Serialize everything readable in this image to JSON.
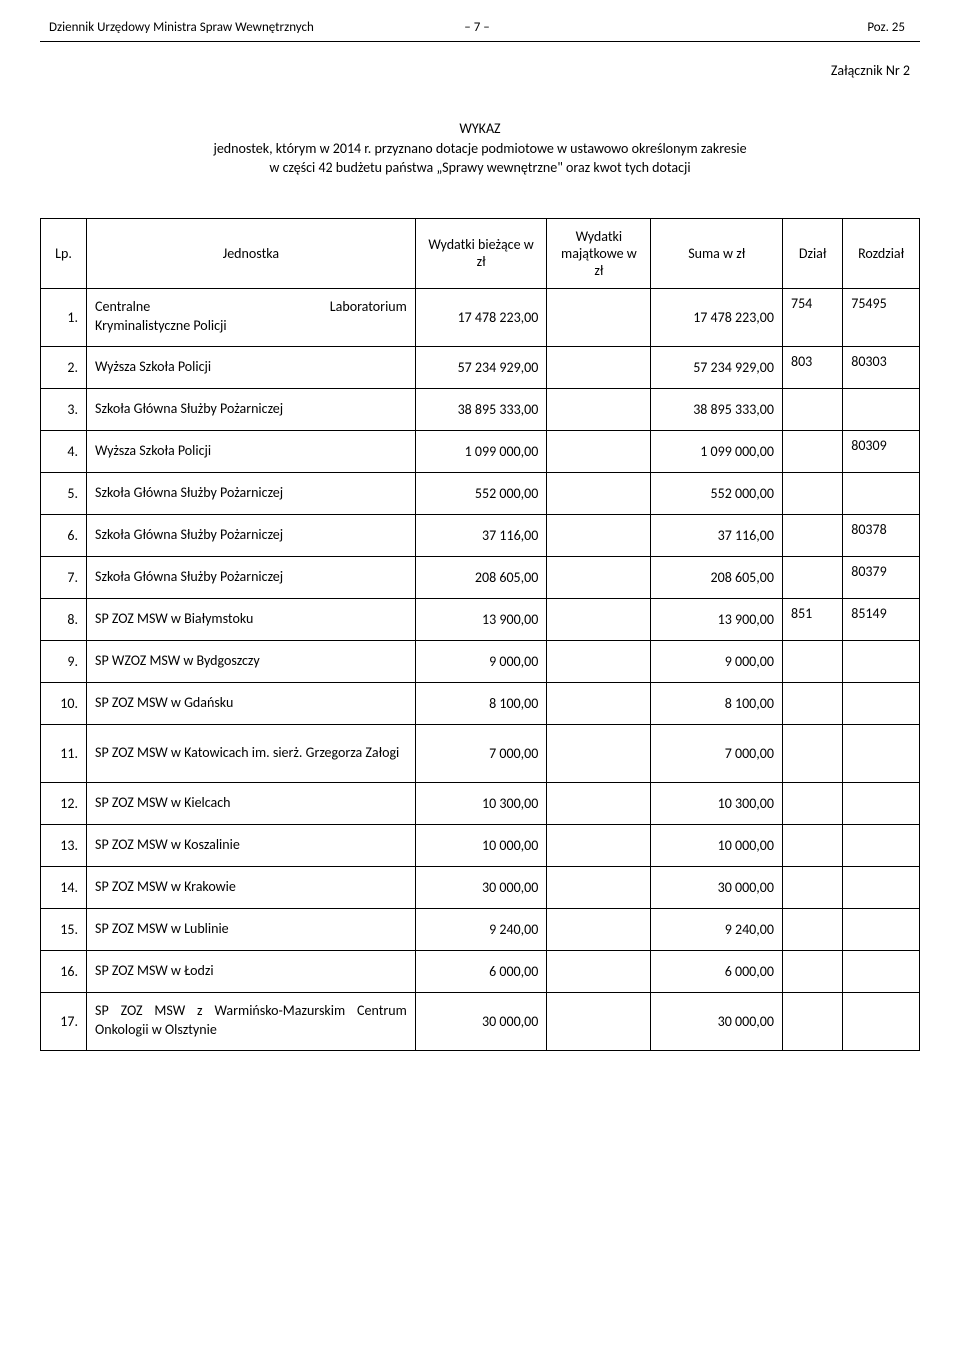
{
  "header": {
    "publication": "Dziennik Urzędowy Ministra Spraw Wewnętrznych",
    "page_marker": "– 7 –",
    "position": "Poz. 25"
  },
  "attachment": "Załącznik Nr 2",
  "title": {
    "line1": "WYKAZ",
    "line2": "jednostek, którym w 2014 r. przyznano dotacje podmiotowe w ustawowo określonym zakresie",
    "line3": "w części 42 budżetu państwa „Sprawy wewnętrzne\" oraz kwot tych dotacji"
  },
  "columns": {
    "lp": "Lp.",
    "unit": "Jednostka",
    "current": "Wydatki bieżące w zł",
    "capital": "Wydatki majątkowe w zł",
    "sum": "Suma w zł",
    "dzial": "Dział",
    "rozdzial": "Rozdział"
  },
  "rows": [
    {
      "lp": "1.",
      "unit_left": "Centralne",
      "unit_right": "Laboratorium",
      "unit_line2": "Kryminalistyczne Policji",
      "current": "17 478 223,00",
      "capital": "",
      "sum": "17 478 223,00",
      "dzial": "754",
      "rozdzial": "75495"
    },
    {
      "lp": "2.",
      "unit": "Wyższa Szkoła Policji",
      "current": "57 234 929,00",
      "capital": "",
      "sum": "57 234 929,00",
      "dzial": "803",
      "rozdzial": "80303"
    },
    {
      "lp": "3.",
      "unit": "Szkoła Główna Służby Pożarniczej",
      "current": "38 895 333,00",
      "capital": "",
      "sum": "38 895 333,00"
    },
    {
      "lp": "4.",
      "unit": "Wyższa Szkoła Policji",
      "current": "1 099 000,00",
      "capital": "",
      "sum": "1 099 000,00",
      "rozdzial": "80309"
    },
    {
      "lp": "5.",
      "unit": "Szkoła Główna Służby Pożarniczej",
      "current": "552 000,00",
      "capital": "",
      "sum": "552 000,00"
    },
    {
      "lp": "6.",
      "unit": "Szkoła Główna Służby Pożarniczej",
      "current": "37 116,00",
      "capital": "",
      "sum": "37 116,00",
      "rozdzial": "80378"
    },
    {
      "lp": "7.",
      "unit": "Szkoła Główna Służby Pożarniczej",
      "current": "208 605,00",
      "capital": "",
      "sum": "208 605,00",
      "rozdzial": "80379"
    },
    {
      "lp": "8.",
      "unit": "SP ZOZ MSW w Białymstoku",
      "current": "13 900,00",
      "capital": "",
      "sum": "13 900,00",
      "dzial": "851",
      "rozdzial": "85149"
    },
    {
      "lp": "9.",
      "unit": "SP WZOZ MSW w Bydgoszczy",
      "current": "9 000,00",
      "capital": "",
      "sum": "9 000,00"
    },
    {
      "lp": "10.",
      "unit": "SP ZOZ MSW w Gdańsku",
      "current": "8 100,00",
      "capital": "",
      "sum": "8 100,00"
    },
    {
      "lp": "11.",
      "unit": "SP ZOZ MSW w Katowicach im. sierż. Grzegorza Załogi",
      "current": "7 000,00",
      "capital": "",
      "sum": "7 000,00"
    },
    {
      "lp": "12.",
      "unit": "SP ZOZ MSW w Kielcach",
      "current": "10 300,00",
      "capital": "",
      "sum": "10 300,00"
    },
    {
      "lp": "13.",
      "unit": "SP ZOZ MSW w Koszalinie",
      "current": "10 000,00",
      "capital": "",
      "sum": "10 000,00"
    },
    {
      "lp": "14.",
      "unit": "SP ZOZ MSW w Krakowie",
      "current": "30 000,00",
      "capital": "",
      "sum": "30 000,00"
    },
    {
      "lp": "15.",
      "unit": "SP ZOZ MSW w Lublinie",
      "current": "9 240,00",
      "capital": "",
      "sum": "9 240,00"
    },
    {
      "lp": "16.",
      "unit": "SP ZOZ MSW w Łodzi",
      "current": "6 000,00",
      "capital": "",
      "sum": "6 000,00"
    },
    {
      "lp": "17.",
      "unit": "SP ZOZ MSW z Warmińsko-Mazurskim Centrum Onkologii w Olsztynie",
      "current": "30 000,00",
      "capital": "",
      "sum": "30 000,00"
    }
  ]
}
